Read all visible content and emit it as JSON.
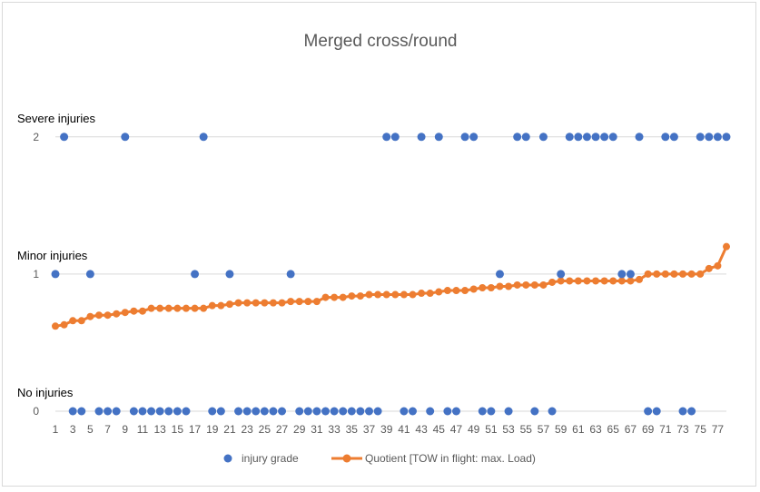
{
  "chart_data": {
    "type": "scatter",
    "title": "Merged cross/round",
    "x_ticks": [
      "1",
      "3",
      "5",
      "7",
      "9",
      "11",
      "13",
      "15",
      "17",
      "19",
      "21",
      "23",
      "25",
      "27",
      "29",
      "31",
      "33",
      "35",
      "37",
      "39",
      "41",
      "43",
      "45",
      "47",
      "49",
      "51",
      "53",
      "55",
      "57",
      "59",
      "61",
      "63",
      "65",
      "67",
      "69",
      "71",
      "73",
      "75",
      "77"
    ],
    "y_ticks": [
      "0",
      "1",
      "2"
    ],
    "y_category_labels": [
      {
        "y": 2,
        "text": "Severe injuries"
      },
      {
        "y": 1,
        "text": "Minor injuries"
      },
      {
        "y": 0,
        "text": "No injuries"
      }
    ],
    "xlim": [
      1,
      78
    ],
    "ylim": [
      0,
      2.25
    ],
    "grid": true,
    "legend": "bottom",
    "series": [
      {
        "name": "injury grade",
        "type": "scatter",
        "color": "#4472c4",
        "x": [
          1,
          2,
          3,
          4,
          5,
          6,
          7,
          8,
          9,
          10,
          11,
          12,
          13,
          14,
          15,
          16,
          17,
          18,
          19,
          20,
          21,
          22,
          23,
          24,
          25,
          26,
          27,
          28,
          29,
          30,
          31,
          32,
          33,
          34,
          35,
          36,
          37,
          38,
          39,
          40,
          41,
          42,
          43,
          44,
          45,
          46,
          47,
          48,
          49,
          50,
          51,
          52,
          53,
          54,
          55,
          56,
          57,
          58,
          59,
          60,
          61,
          62,
          63,
          64,
          65,
          66,
          67,
          68,
          69,
          70,
          71,
          72,
          73,
          74,
          75,
          76,
          77,
          78
        ],
        "values": [
          1,
          2,
          0,
          0,
          1,
          0,
          0,
          0,
          2,
          0,
          0,
          0,
          0,
          0,
          0,
          0,
          1,
          2,
          0,
          0,
          1,
          0,
          0,
          0,
          0,
          0,
          0,
          1,
          0,
          0,
          0,
          0,
          0,
          0,
          0,
          0,
          0,
          0,
          2,
          2,
          0,
          0,
          2,
          0,
          2,
          0,
          0,
          2,
          2,
          0,
          0,
          1,
          0,
          2,
          2,
          0,
          2,
          0,
          1,
          2,
          2,
          2,
          2,
          2,
          2,
          1,
          1,
          2,
          0,
          0,
          2,
          2,
          0,
          0,
          2,
          2,
          2,
          2
        ]
      },
      {
        "name": "Quotient [TOW in flight: max. Load)",
        "type": "line",
        "color": "#ed7d31",
        "x": [
          1,
          2,
          3,
          4,
          5,
          6,
          7,
          8,
          9,
          10,
          11,
          12,
          13,
          14,
          15,
          16,
          17,
          18,
          19,
          20,
          21,
          22,
          23,
          24,
          25,
          26,
          27,
          28,
          29,
          30,
          31,
          32,
          33,
          34,
          35,
          36,
          37,
          38,
          39,
          40,
          41,
          42,
          43,
          44,
          45,
          46,
          47,
          48,
          49,
          50,
          51,
          52,
          53,
          54,
          55,
          56,
          57,
          58,
          59,
          60,
          61,
          62,
          63,
          64,
          65,
          66,
          67,
          68,
          69,
          70,
          71,
          72,
          73,
          74,
          75,
          76,
          77,
          78
        ],
        "values": [
          0.62,
          0.63,
          0.66,
          0.66,
          0.69,
          0.7,
          0.7,
          0.71,
          0.72,
          0.73,
          0.73,
          0.75,
          0.75,
          0.75,
          0.75,
          0.75,
          0.75,
          0.75,
          0.77,
          0.77,
          0.78,
          0.79,
          0.79,
          0.79,
          0.79,
          0.79,
          0.79,
          0.8,
          0.8,
          0.8,
          0.8,
          0.83,
          0.83,
          0.83,
          0.84,
          0.84,
          0.85,
          0.85,
          0.85,
          0.85,
          0.85,
          0.85,
          0.86,
          0.86,
          0.87,
          0.88,
          0.88,
          0.88,
          0.89,
          0.9,
          0.9,
          0.91,
          0.91,
          0.92,
          0.92,
          0.92,
          0.92,
          0.94,
          0.95,
          0.95,
          0.95,
          0.95,
          0.95,
          0.95,
          0.95,
          0.95,
          0.95,
          0.96,
          1.0,
          1.0,
          1.0,
          1.0,
          1.0,
          1.0,
          1.0,
          1.04,
          1.06,
          1.2
        ]
      }
    ]
  }
}
